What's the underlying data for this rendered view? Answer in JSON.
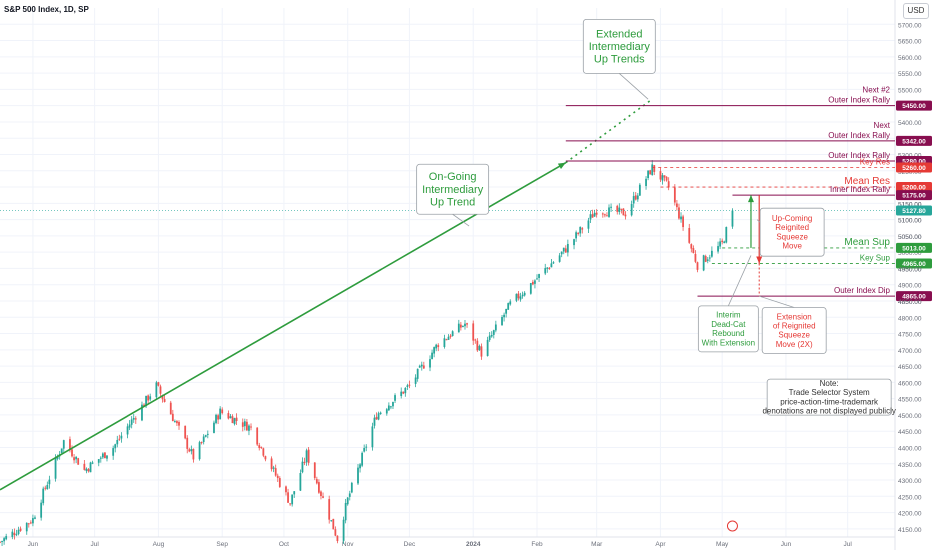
{
  "header": {
    "title": "S&P 500 Index, 1D, SP",
    "currency_button": "USD"
  },
  "colors": {
    "up": "#26a69a",
    "down": "#ef5350",
    "green": "#2e9c3d",
    "red": "#e53935",
    "maroon": "#880e4f",
    "grid": "#f0f3fa",
    "axis_text": "#6b6f7a"
  },
  "chart_data": {
    "type": "candlestick",
    "ylim": [
      4125,
      5750
    ],
    "y_ticks": [
      4150,
      4200,
      4250,
      4300,
      4350,
      4400,
      4450,
      4500,
      4550,
      4600,
      4650,
      4700,
      4750,
      4800,
      4850,
      4900,
      4950,
      5000,
      5050,
      5100,
      5150,
      5200,
      5250,
      5300,
      5350,
      5400,
      5450,
      5500,
      5550,
      5600,
      5650,
      5700
    ],
    "x_ticks": [
      {
        "label": "Jun",
        "date": "2023-06-01"
      },
      {
        "label": "Jul",
        "date": "2023-07-01"
      },
      {
        "label": "Aug",
        "date": "2023-08-01"
      },
      {
        "label": "Sep",
        "date": "2023-09-01"
      },
      {
        "label": "Oct",
        "date": "2023-10-01"
      },
      {
        "label": "Nov",
        "date": "2023-11-01"
      },
      {
        "label": "Dec",
        "date": "2023-12-01"
      },
      {
        "label": "2024",
        "date": "2024-01-01"
      },
      {
        "label": "Feb",
        "date": "2024-02-01"
      },
      {
        "label": "Mar",
        "date": "2024-03-01"
      },
      {
        "label": "Apr",
        "date": "2024-04-01"
      },
      {
        "label": "May",
        "date": "2024-05-01"
      },
      {
        "label": "Jun",
        "date": "2024-06-01"
      },
      {
        "label": "Jul",
        "date": "2024-07-01"
      }
    ],
    "x_range": [
      "2023-05-16",
      "2024-07-24"
    ],
    "price_path": [
      [
        "2023-05-16",
        4110
      ],
      [
        "2023-06-01",
        4180
      ],
      [
        "2023-06-16",
        4420
      ],
      [
        "2023-06-26",
        4330
      ],
      [
        "2023-07-10",
        4400
      ],
      [
        "2023-07-31",
        4590
      ],
      [
        "2023-08-18",
        4370
      ],
      [
        "2023-08-31",
        4510
      ],
      [
        "2023-09-15",
        4460
      ],
      [
        "2023-10-04",
        4230
      ],
      [
        "2023-10-12",
        4380
      ],
      [
        "2023-10-27",
        4120
      ],
      [
        "2023-11-01",
        4240
      ],
      [
        "2023-11-15",
        4500
      ],
      [
        "2023-12-01",
        4590
      ],
      [
        "2023-12-15",
        4720
      ],
      [
        "2023-12-28",
        4780
      ],
      [
        "2024-01-05",
        4690
      ],
      [
        "2024-01-19",
        4840
      ],
      [
        "2024-02-01",
        4920
      ],
      [
        "2024-02-15",
        5010
      ],
      [
        "2024-03-01",
        5130
      ],
      [
        "2024-03-15",
        5120
      ],
      [
        "2024-03-28",
        5260
      ],
      [
        "2024-04-05",
        5200
      ],
      [
        "2024-04-19",
        4960
      ],
      [
        "2024-05-01",
        5025
      ],
      [
        "2024-05-06",
        5127
      ]
    ],
    "last_price": 5127.8,
    "trendlines": [
      {
        "name": "on-going-trend",
        "color": "green",
        "style": "solid",
        "from": [
          "2023-05-16",
          4270
        ],
        "to": [
          "2024-02-15",
          5275
        ]
      },
      {
        "name": "extended-trend",
        "color": "green",
        "style": "dotted",
        "from": [
          "2024-02-15",
          5275
        ],
        "to": [
          "2024-03-28",
          5470
        ]
      }
    ],
    "levels": [
      {
        "value": 5450,
        "label": "Next #2\nOuter Index Rally",
        "tag": "5450.00",
        "color": "maroon",
        "style": "solid",
        "from": "2024-02-15"
      },
      {
        "value": 5342,
        "label": "Next\nOuter Index Rally",
        "tag": "5342.00",
        "color": "maroon",
        "style": "solid",
        "from": "2024-02-15"
      },
      {
        "value": 5280,
        "label": "Outer Index Rally",
        "tag": "5280.00",
        "color": "maroon",
        "style": "solid",
        "from": "2024-02-15"
      },
      {
        "value": 5260,
        "label": "Key Res",
        "tag": "5260.00",
        "color": "red",
        "style": "dashed",
        "from": "2024-03-28"
      },
      {
        "value": 5200,
        "label": "Mean Res",
        "tag": "5200.00",
        "color": "red",
        "style": "dashed",
        "from": "2024-04-01"
      },
      {
        "value": 5175,
        "label": "Inner Index Rally",
        "tag": "5175.00",
        "color": "maroon",
        "style": "solid",
        "from": "2024-05-06"
      },
      {
        "value": 5013,
        "label": "Mean Sup",
        "tag": "5013.00",
        "color": "green",
        "style": "dashed",
        "from": "2024-05-01"
      },
      {
        "value": 4965,
        "label": "Key Sup",
        "tag": "4965.00",
        "color": "green",
        "style": "dashed",
        "from": "2024-04-26"
      },
      {
        "value": 4865,
        "label": "Outer Index Dip",
        "tag": "4865.00",
        "color": "maroon",
        "style": "solid",
        "from": "2024-04-19"
      }
    ],
    "last_price_tag": "5127.80",
    "plain_price_tags": [
      "5150.00",
      "5100.00",
      "5050.00",
      "4950.00",
      "4850.00"
    ],
    "annotations": [
      {
        "id": "extended",
        "text": "Extended\nIntermediary\nUp Trends",
        "color": "green"
      },
      {
        "id": "ongoing",
        "text": "On-Going\nIntermediary\nUp Trend",
        "color": "green"
      },
      {
        "id": "upcoming",
        "text": "Up-Coming\nReignited\nSqueeze\nMove",
        "color": "red"
      },
      {
        "id": "deadcat",
        "text": "Interim\nDead-Cat\nRebound\nWith Extension",
        "color": "green"
      },
      {
        "id": "extension",
        "text": "Extension\nof Reignited\nSqueeze\nMove (2X)",
        "color": "red"
      },
      {
        "id": "note",
        "text": "Note:\nTrade Selector System\nprice-action-time-trademark\ndenotations are not displayed publicly",
        "color": "dark"
      }
    ]
  }
}
